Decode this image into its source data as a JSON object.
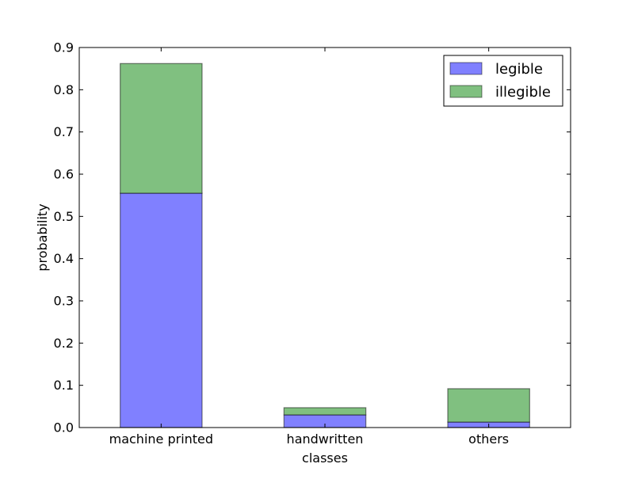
{
  "chart_data": {
    "type": "bar",
    "stacked": true,
    "categories": [
      "machine printed",
      "handwritten",
      "others"
    ],
    "series": [
      {
        "name": "legible",
        "values": [
          0.555,
          0.03,
          0.013
        ],
        "color": "#8080ff"
      },
      {
        "name": "illegible",
        "values": [
          0.307,
          0.017,
          0.079
        ],
        "color": "#80c080"
      }
    ],
    "title": "",
    "xlabel": "classes",
    "ylabel": "probability",
    "ylim": [
      0,
      0.9
    ],
    "yticks": [
      "0.0",
      "0.1",
      "0.2",
      "0.3",
      "0.4",
      "0.5",
      "0.6",
      "0.7",
      "0.8",
      "0.9"
    ],
    "grid": false,
    "legend_position": "top-right"
  }
}
